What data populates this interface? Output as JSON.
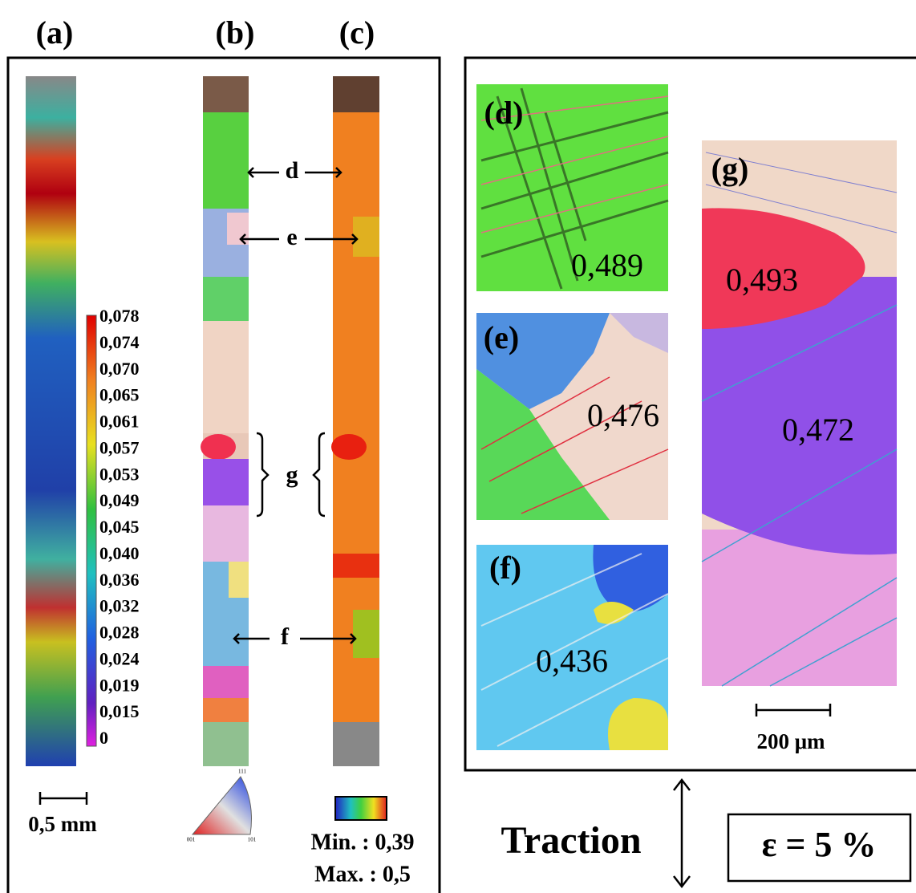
{
  "panel_labels": [
    "(a)",
    "(b)",
    "(c)"
  ],
  "colorbar_ticks": [
    "0,078",
    "0,074",
    "0,070",
    "0,065",
    "0,061",
    "0,057",
    "0,053",
    "0,049",
    "0,045",
    "0,040",
    "0,036",
    "0,032",
    "0,028",
    "0,024",
    "0,019",
    "0,015",
    "0"
  ],
  "markers": [
    "d",
    "e",
    "g",
    "f"
  ],
  "scale_left": "0,5 mm",
  "ipf_labels": [
    "111",
    "001",
    "101"
  ],
  "misorientation": {
    "min": "Min. : 0,39",
    "max": "Max. : 0,5"
  },
  "insets": [
    {
      "label": "(d)",
      "values": [
        "0,489"
      ]
    },
    {
      "label": "(e)",
      "values": [
        "0,476"
      ]
    },
    {
      "label": "(f)",
      "values": [
        "0,436"
      ]
    },
    {
      "label": "(g)",
      "values": [
        "0,493",
        "0,472"
      ]
    }
  ],
  "scale_right": "200 μm",
  "loading": "Traction",
  "strain": "ε = 5 %"
}
